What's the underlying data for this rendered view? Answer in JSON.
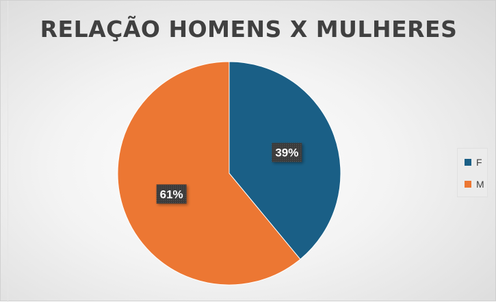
{
  "chart_data": {
    "type": "pie",
    "title": "RELAÇÃO HOMENS X MULHERES",
    "categories": [
      "F",
      "M"
    ],
    "values": [
      39,
      61
    ],
    "value_labels": [
      "39%",
      "61%"
    ],
    "colors": [
      "#1a5f86",
      "#ec7733"
    ],
    "start_angle_deg": 0,
    "direction": "clockwise",
    "legend": {
      "position": "right",
      "entries": [
        "F",
        "M"
      ]
    },
    "data_label_style": "dark-box-white-text"
  }
}
